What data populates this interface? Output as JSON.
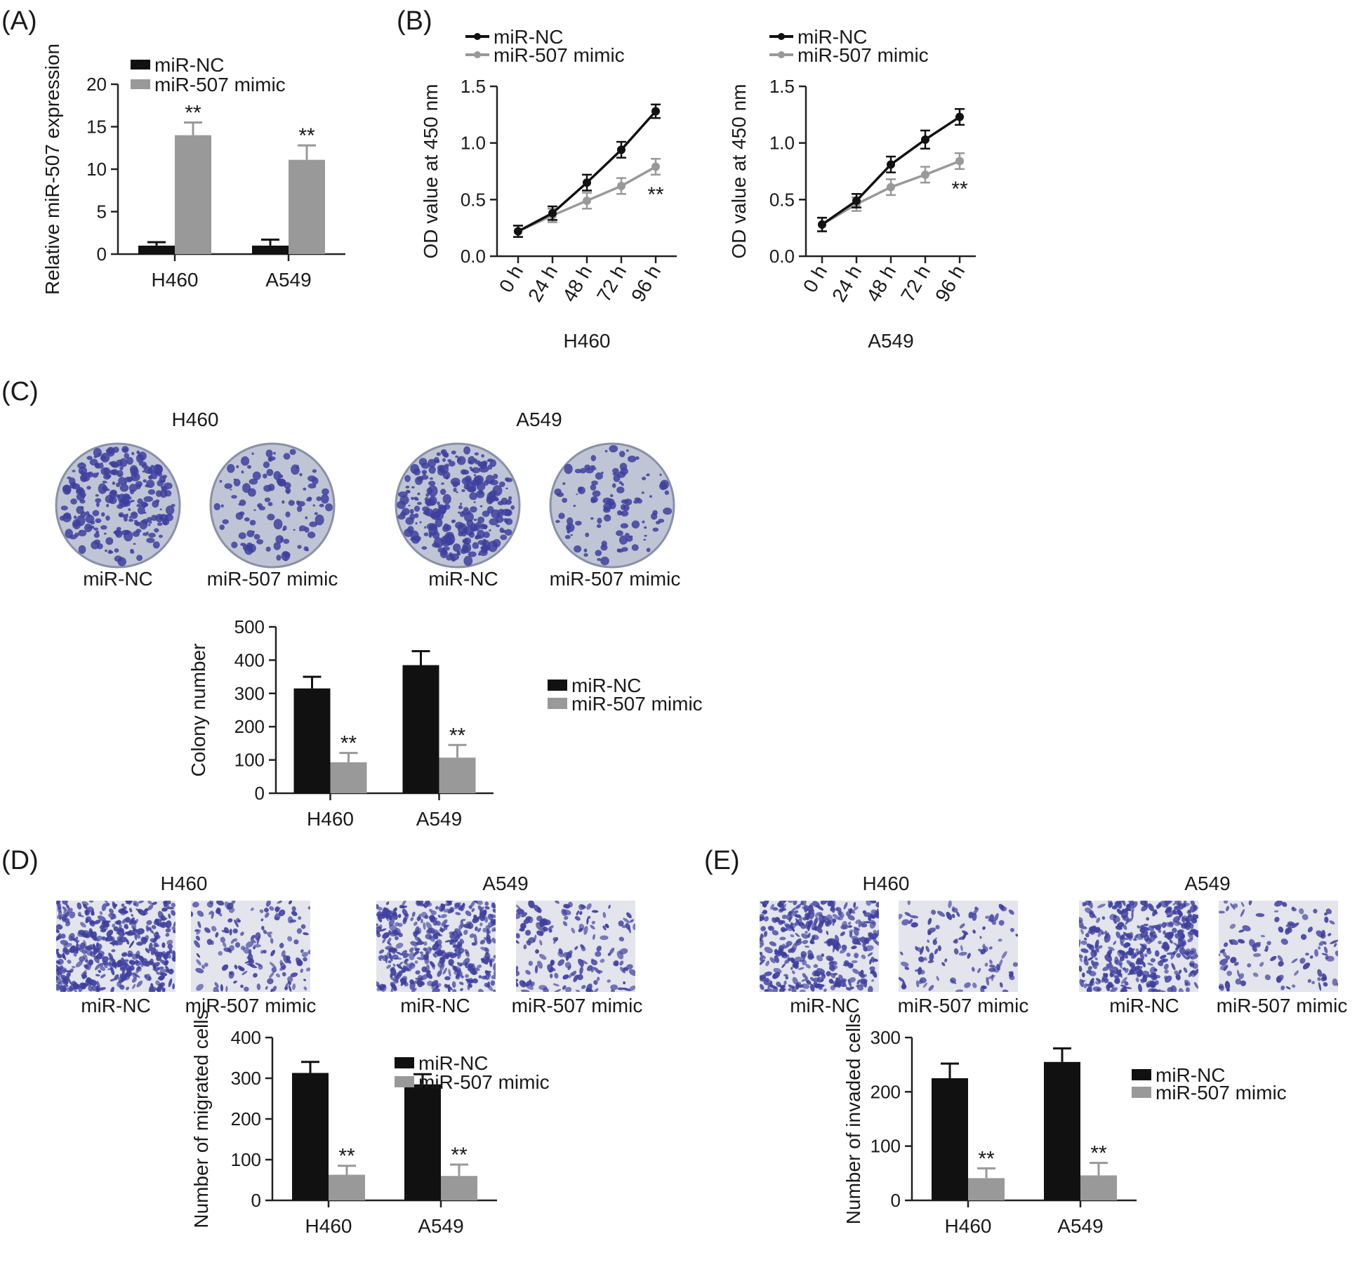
{
  "colors": {
    "nc": "#111111",
    "mimic": "#999999",
    "stain": "#3e3f9e",
    "dish": "#bfc5d4",
    "field": "#e3e4ec"
  },
  "panel_labels": [
    "(A)",
    "(B)",
    "(C)",
    "(D)",
    "(E)"
  ],
  "legend": {
    "nc": "miR-NC",
    "mimic": "miR-507 mimic"
  },
  "images": {
    "c": {
      "groups": [
        "H460",
        "A549"
      ],
      "captions": [
        "miR-NC",
        "miR-507 mimic",
        "miR-NC",
        "miR-507 mimic"
      ]
    },
    "d": {
      "groups": [
        "H460",
        "A549"
      ],
      "captions": [
        "miR-NC",
        "miR-507 mimic",
        "miR-NC",
        "miR-507 mimic"
      ]
    },
    "e": {
      "groups": [
        "H460",
        "A549"
      ],
      "captions": [
        "miR-NC",
        "miR-507 mimic",
        "miR-NC",
        "miR-507 mimic"
      ]
    }
  },
  "chart_data": [
    {
      "panel": "A",
      "type": "bar",
      "categories": [
        "H460",
        "A549"
      ],
      "series": [
        {
          "name": "miR-NC",
          "values": [
            1.0,
            1.0
          ],
          "errors": [
            0.4,
            0.7
          ]
        },
        {
          "name": "miR-507 mimic",
          "values": [
            14.0,
            11.1
          ],
          "errors": [
            1.5,
            1.7
          ]
        }
      ],
      "xlabel": "",
      "ylabel": "Relative miR-507 expression",
      "ylim": [
        0,
        20
      ],
      "yticks": [
        0,
        5,
        10,
        15,
        20
      ],
      "annotations": [
        "**",
        "**"
      ],
      "legend": "top-left",
      "grid": false
    },
    {
      "panel": "B",
      "type": "line",
      "x": [
        "0 h",
        "24 h",
        "48 h",
        "72 h",
        "96 h"
      ],
      "series": [
        {
          "name": "miR-NC",
          "values": [
            0.22,
            0.38,
            0.65,
            0.94,
            1.28
          ],
          "errors": [
            0.05,
            0.06,
            0.07,
            0.07,
            0.06
          ]
        },
        {
          "name": "miR-507 mimic",
          "values": [
            0.22,
            0.36,
            0.49,
            0.62,
            0.79
          ],
          "errors": [
            0.05,
            0.06,
            0.07,
            0.07,
            0.07
          ]
        }
      ],
      "xlabel": "H460",
      "ylabel": "OD value at 450 nm",
      "ylim": [
        0,
        1.5
      ],
      "yticks": [
        "0.0",
        "0.5",
        "1.0",
        "1.5"
      ],
      "annotations": [
        "**"
      ],
      "legend": "top-left",
      "grid": false
    },
    {
      "panel": "B",
      "type": "line",
      "x": [
        "0 h",
        "24 h",
        "48 h",
        "72 h",
        "96 h"
      ],
      "series": [
        {
          "name": "miR-NC",
          "values": [
            0.28,
            0.49,
            0.81,
            1.03,
            1.23
          ],
          "errors": [
            0.06,
            0.06,
            0.07,
            0.08,
            0.07
          ]
        },
        {
          "name": "miR-507 mimic",
          "values": [
            0.28,
            0.46,
            0.61,
            0.72,
            0.84
          ],
          "errors": [
            0.06,
            0.06,
            0.07,
            0.07,
            0.07
          ]
        }
      ],
      "xlabel": "A549",
      "ylabel": "OD value at 450 nm",
      "ylim": [
        0,
        1.5
      ],
      "yticks": [
        "0.0",
        "0.5",
        "1.0",
        "1.5"
      ],
      "annotations": [
        "**"
      ],
      "legend": "top-left",
      "grid": false
    },
    {
      "panel": "C",
      "type": "bar",
      "categories": [
        "H460",
        "A549"
      ],
      "series": [
        {
          "name": "miR-NC",
          "values": [
            315,
            385
          ],
          "errors": [
            35,
            42
          ]
        },
        {
          "name": "miR-507 mimic",
          "values": [
            93,
            107
          ],
          "errors": [
            28,
            38
          ]
        }
      ],
      "xlabel": "",
      "ylabel": "Colony number",
      "ylim": [
        0,
        500
      ],
      "yticks": [
        0,
        100,
        200,
        300,
        400,
        500
      ],
      "annotations": [
        "**",
        "**"
      ],
      "legend": "right",
      "grid": false
    },
    {
      "panel": "D",
      "type": "bar",
      "categories": [
        "H460",
        "A549"
      ],
      "series": [
        {
          "name": "miR-NC",
          "values": [
            313,
            285
          ],
          "errors": [
            27,
            25
          ]
        },
        {
          "name": "miR-507 mimic",
          "values": [
            63,
            60
          ],
          "errors": [
            22,
            28
          ]
        }
      ],
      "xlabel": "",
      "ylabel": "Number of migrated cells",
      "ylim": [
        0,
        400
      ],
      "yticks": [
        0,
        100,
        200,
        300,
        400
      ],
      "annotations": [
        "**",
        "**"
      ],
      "legend": "top-right",
      "grid": false
    },
    {
      "panel": "E",
      "type": "bar",
      "categories": [
        "H460",
        "A549"
      ],
      "series": [
        {
          "name": "miR-NC",
          "values": [
            225,
            255
          ],
          "errors": [
            27,
            25
          ]
        },
        {
          "name": "miR-507 mimic",
          "values": [
            41,
            46
          ],
          "errors": [
            18,
            23
          ]
        }
      ],
      "xlabel": "",
      "ylabel": "Number of invaded cells",
      "ylim": [
        0,
        300
      ],
      "yticks": [
        0,
        100,
        200,
        300
      ],
      "annotations": [
        "**",
        "**"
      ],
      "legend": "top-right",
      "grid": false
    }
  ]
}
